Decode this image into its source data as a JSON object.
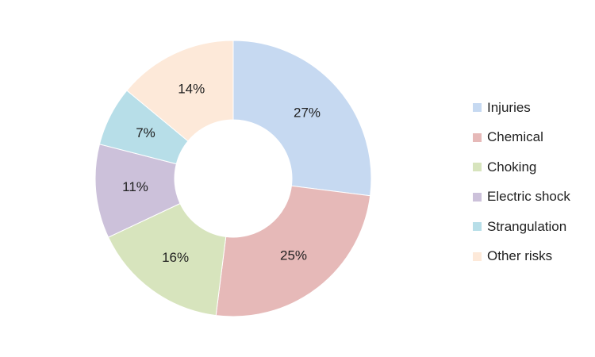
{
  "chart_data": {
    "type": "pie",
    "donut": true,
    "title": "",
    "legend_position": "right",
    "start_angle_deg": 0,
    "direction": "clockwise",
    "categories": [
      "Injuries",
      "Chemical",
      "Choking",
      "Electric shock",
      "Strangulation",
      "Other risks"
    ],
    "values": [
      27,
      25,
      16,
      11,
      7,
      14
    ],
    "labels": [
      "27%",
      "25%",
      "16%",
      "11%",
      "7%",
      "14%"
    ],
    "colors": [
      "#c6d9f1",
      "#e6b9b8",
      "#d7e4bd",
      "#ccc1da",
      "#b7dee8",
      "#fde9d9"
    ]
  }
}
